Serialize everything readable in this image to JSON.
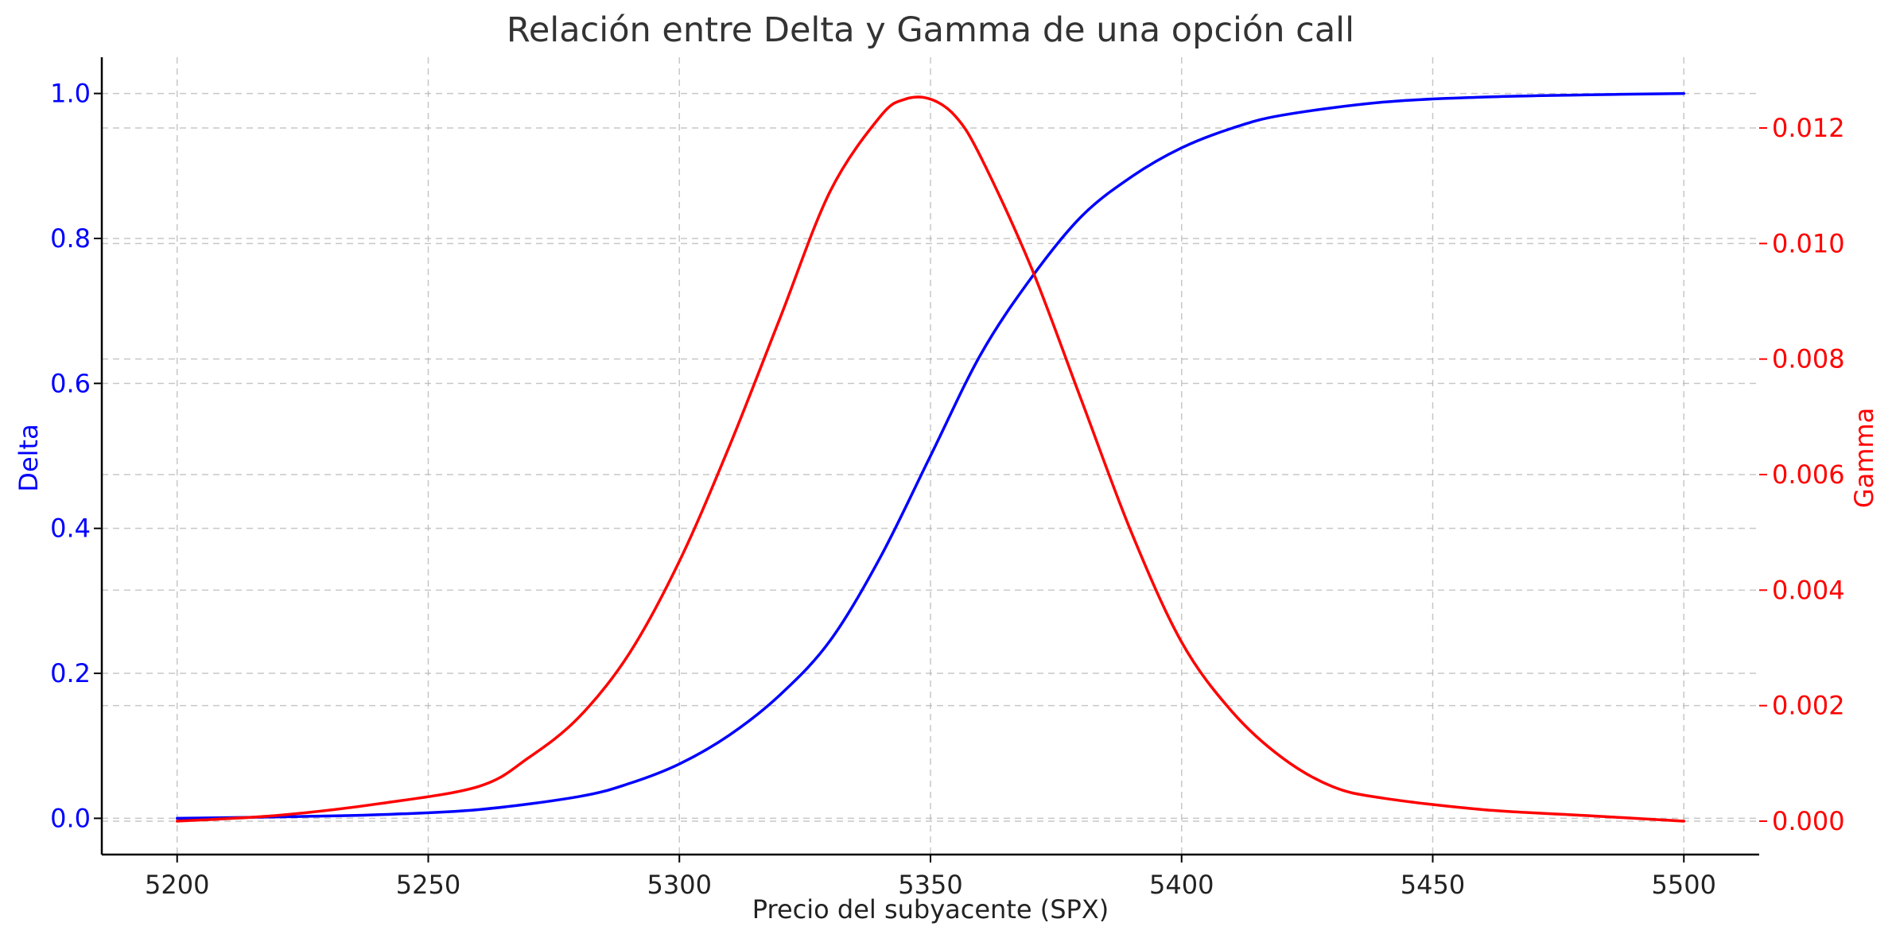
{
  "chart_data": {
    "type": "line",
    "title": "Relación entre Delta y Gamma de una opción call",
    "xlabel": "Precio del subyacente (SPX)",
    "ylabel_left": "Delta",
    "ylabel_right": "Gamma",
    "xlim": [
      5185,
      5515
    ],
    "ylim_left": [
      -0.05,
      1.05
    ],
    "ylim_right": [
      -0.000578,
      0.013225
    ],
    "x_ticks": [
      5200,
      5250,
      5300,
      5350,
      5400,
      5450,
      5500
    ],
    "x_tick_labels": [
      "5200",
      "5250",
      "5300",
      "5350",
      "5400",
      "5450",
      "5500"
    ],
    "y_left_ticks": [
      0.0,
      0.2,
      0.4,
      0.6,
      0.8,
      1.0
    ],
    "y_left_tick_labels": [
      "0.0",
      "0.2",
      "0.4",
      "0.6",
      "0.8",
      "1.0"
    ],
    "y_right_ticks": [
      0.0,
      0.002,
      0.004,
      0.006,
      0.008,
      0.01,
      0.012
    ],
    "y_right_tick_labels": [
      "0.000",
      "0.002",
      "0.004",
      "0.006",
      "0.008",
      "0.010",
      "0.012"
    ],
    "grid": true,
    "series": [
      {
        "axis": "left",
        "color": "#0000ff",
        "x": [
          5200,
          5220,
          5240,
          5260,
          5280,
          5290,
          5300,
          5310,
          5320,
          5330,
          5340,
          5350,
          5360,
          5370,
          5380,
          5390,
          5400,
          5410,
          5420,
          5440,
          5460,
          5480,
          5500
        ],
        "values": [
          0.0,
          0.002,
          0.005,
          0.012,
          0.03,
          0.048,
          0.075,
          0.115,
          0.17,
          0.245,
          0.36,
          0.5,
          0.64,
          0.745,
          0.83,
          0.885,
          0.925,
          0.952,
          0.97,
          0.988,
          0.995,
          0.998,
          1.0
        ]
      },
      {
        "axis": "right",
        "color": "#ff0000",
        "x": [
          5200,
          5220,
          5240,
          5260,
          5270,
          5280,
          5290,
          5300,
          5310,
          5320,
          5330,
          5340,
          5345,
          5350,
          5355,
          5360,
          5370,
          5380,
          5390,
          5400,
          5410,
          5420,
          5430,
          5440,
          5460,
          5480,
          5500
        ],
        "values": [
          0.0,
          0.0001,
          0.0003,
          0.0006,
          0.0011,
          0.0018,
          0.0029,
          0.0045,
          0.0065,
          0.0087,
          0.0109,
          0.0122,
          0.0125,
          0.0125,
          0.0122,
          0.0115,
          0.0096,
          0.0073,
          0.005,
          0.0031,
          0.0019,
          0.0011,
          0.0006,
          0.0004,
          0.0002,
          0.0001,
          0.0
        ]
      }
    ],
    "colors": {
      "delta": "#0000ff",
      "gamma": "#ff0000",
      "title": "#333333",
      "grid": "#b0b0b0"
    }
  }
}
